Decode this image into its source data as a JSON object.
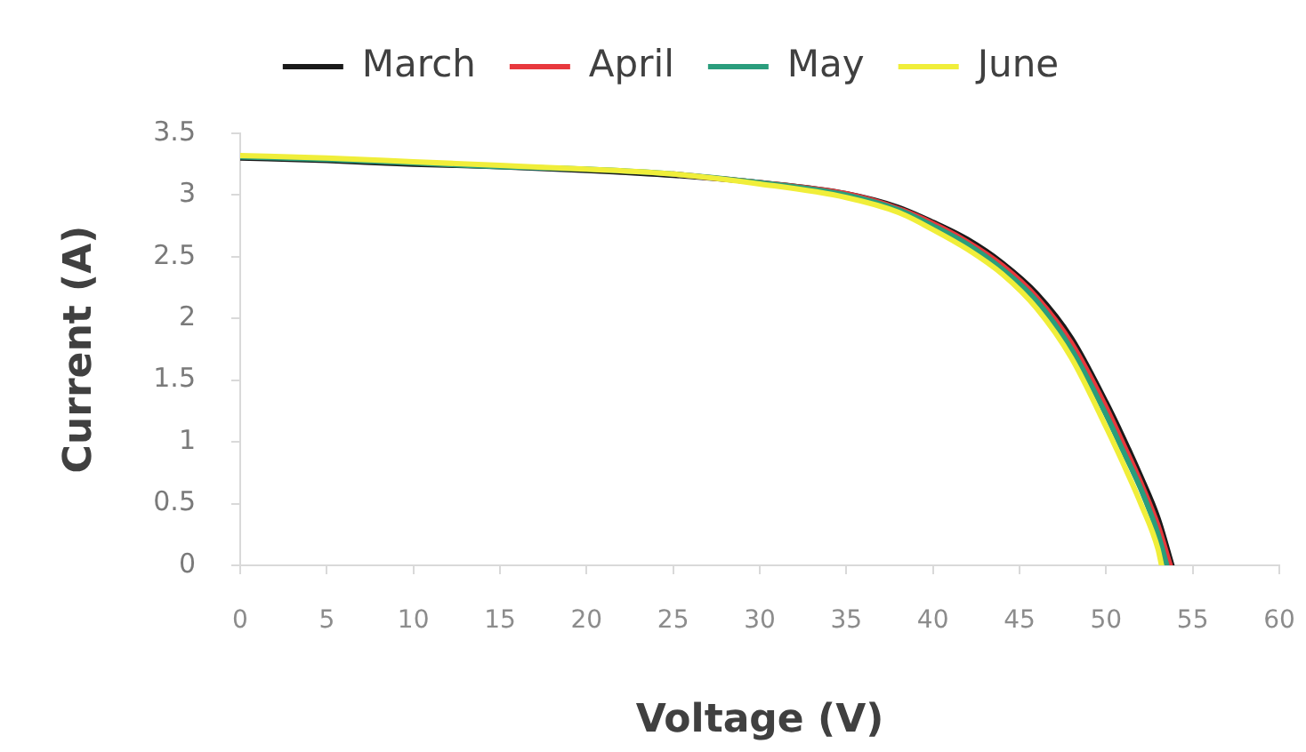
{
  "chart_data": {
    "type": "line",
    "xlabel": "Voltage (V)",
    "ylabel": "Current (A)",
    "xlim": [
      0,
      60
    ],
    "xticks": [
      0,
      5,
      10,
      15,
      20,
      25,
      30,
      35,
      40,
      45,
      50,
      55,
      60
    ],
    "ylim": [
      0,
      3.5
    ],
    "yticks": [
      0,
      0.5,
      1,
      1.5,
      2,
      2.5,
      3,
      3.5
    ],
    "grid": false,
    "legend": "top",
    "marker": "none",
    "series": [
      {
        "name": "March",
        "color": "#1a1a1a",
        "x": [
          0,
          5,
          10,
          15,
          20,
          25,
          30,
          35,
          38,
          40,
          42,
          44,
          46,
          48,
          50,
          51,
          52,
          53,
          53.8
        ],
        "values": [
          3.3,
          3.28,
          3.25,
          3.23,
          3.2,
          3.16,
          3.1,
          3.01,
          2.9,
          2.78,
          2.64,
          2.45,
          2.2,
          1.84,
          1.32,
          1.03,
          0.72,
          0.38,
          0
        ]
      },
      {
        "name": "April",
        "color": "#e8383d",
        "x": [
          25,
          30,
          35,
          38,
          40,
          42,
          44,
          46,
          48,
          50,
          51,
          52,
          53,
          53.7
        ],
        "values": [
          3.17,
          3.1,
          3.01,
          2.89,
          2.77,
          2.62,
          2.43,
          2.17,
          1.8,
          1.28,
          0.98,
          0.67,
          0.32,
          0
        ]
      },
      {
        "name": "May",
        "color": "#2a9d7c",
        "x": [
          0,
          5,
          10,
          15,
          20,
          25,
          30,
          35,
          38,
          40,
          42,
          44,
          46,
          48,
          50,
          51,
          52,
          53,
          53.5
        ],
        "values": [
          3.31,
          3.29,
          3.26,
          3.23,
          3.21,
          3.17,
          3.1,
          3.0,
          2.88,
          2.75,
          2.6,
          2.4,
          2.14,
          1.75,
          1.22,
          0.92,
          0.62,
          0.25,
          0
        ]
      },
      {
        "name": "June",
        "color": "#f0ee3a",
        "x": [
          0,
          5,
          10,
          15,
          20,
          25,
          30,
          35,
          38,
          40,
          42,
          44,
          46,
          48,
          50,
          51,
          52,
          53,
          53.2
        ],
        "values": [
          3.32,
          3.3,
          3.27,
          3.24,
          3.21,
          3.17,
          3.09,
          2.98,
          2.86,
          2.72,
          2.56,
          2.36,
          2.08,
          1.68,
          1.12,
          0.82,
          0.5,
          0.13,
          0
        ]
      }
    ]
  }
}
